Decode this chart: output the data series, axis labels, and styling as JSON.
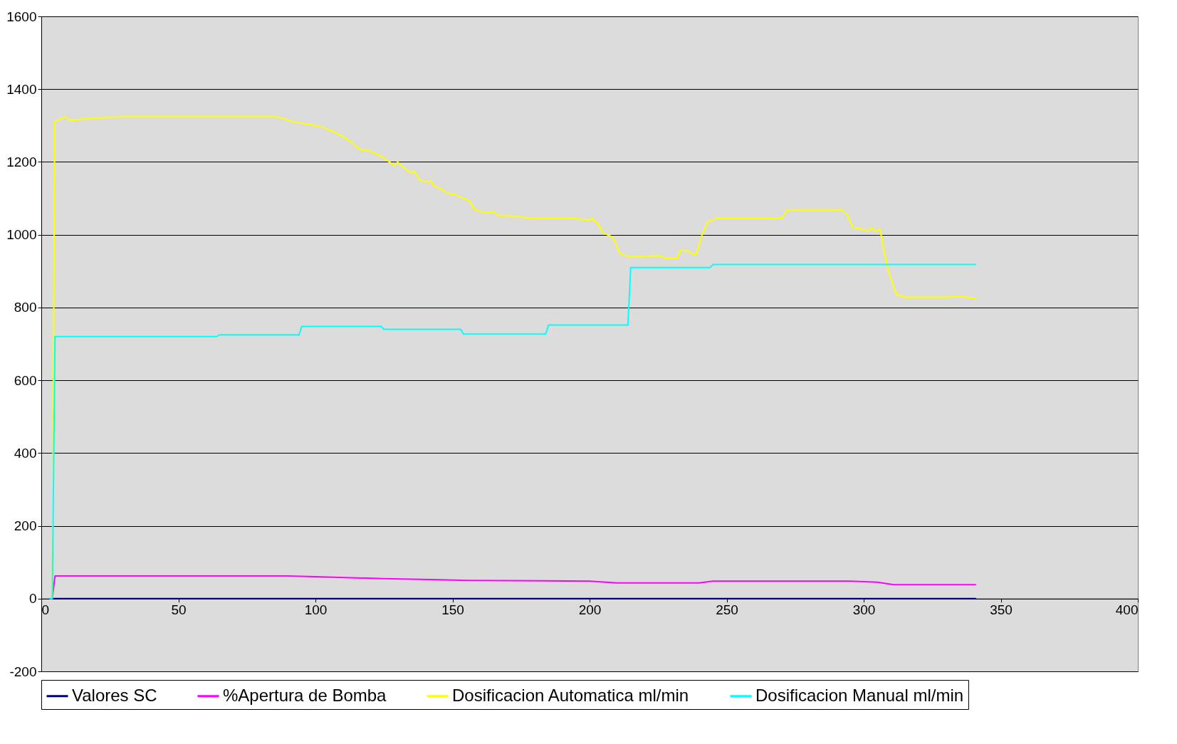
{
  "chart_data": {
    "type": "line",
    "xlim": [
      0,
      400
    ],
    "xticks": [
      0,
      50,
      100,
      150,
      200,
      250,
      300,
      350,
      400
    ],
    "ylim": [
      -200,
      1600
    ],
    "yticks": [
      -200,
      0,
      200,
      400,
      600,
      800,
      1000,
      1200,
      1400,
      1600
    ],
    "grid": "y",
    "legend": "bottom",
    "marker": "none",
    "line_style": "solid",
    "series": [
      {
        "name": "Valores SC",
        "color": "#000080",
        "x": [
          4,
          341
        ],
        "values": [
          0,
          0
        ]
      },
      {
        "name": "%Apertura de Bomba",
        "color": "#ff00ff",
        "x": [
          4,
          5,
          90,
          100,
          125,
          145,
          155,
          200,
          210,
          240,
          245,
          295,
          305,
          311,
          341
        ],
        "values": [
          0,
          62,
          62,
          60,
          55,
          52,
          50,
          48,
          43,
          43,
          48,
          48,
          45,
          38,
          38
        ]
      },
      {
        "name": "Dosificacion Automatica ml/min",
        "color": "#ffff00",
        "x": [
          4,
          4.9,
          6,
          9,
          10,
          20,
          30,
          85,
          88,
          92,
          100,
          103,
          106,
          110,
          113,
          116,
          120,
          123,
          126,
          129,
          130,
          133,
          135,
          136,
          138,
          141,
          142,
          143,
          146,
          148,
          151,
          154,
          156,
          158,
          161,
          164,
          165,
          166,
          172,
          180,
          195,
          200,
          201,
          203,
          205,
          208,
          209,
          211,
          214,
          220,
          225,
          228,
          232,
          233,
          236,
          238,
          239,
          241,
          243,
          246,
          270,
          272,
          292,
          294,
          296,
          298,
          302,
          303,
          304,
          306,
          307,
          309,
          312,
          315,
          330,
          335,
          341
        ],
        "values": [
          0,
          1310,
          1315,
          1325,
          1315,
          1320,
          1325,
          1325,
          1320,
          1310,
          1300,
          1295,
          1285,
          1270,
          1255,
          1235,
          1230,
          1220,
          1205,
          1190,
          1200,
          1180,
          1170,
          1175,
          1150,
          1145,
          1150,
          1135,
          1125,
          1115,
          1110,
          1100,
          1095,
          1070,
          1062,
          1060,
          1065,
          1055,
          1050,
          1045,
          1045,
          1040,
          1045,
          1030,
          1005,
          995,
          985,
          950,
          940,
          940,
          942,
          935,
          935,
          958,
          955,
          945,
          948,
          1000,
          1035,
          1045,
          1045,
          1068,
          1068,
          1055,
          1020,
          1018,
          1010,
          1020,
          1010,
          1015,
          970,
          900,
          835,
          828,
          828,
          830,
          825
        ]
      },
      {
        "name": "Dosificacion Manual ml/min",
        "color": "#00ffff",
        "x": [
          3,
          4,
          5,
          64,
          65,
          94,
          95,
          124,
          125,
          153,
          154,
          184,
          185,
          214,
          215,
          244,
          245,
          341
        ],
        "values": [
          0,
          0,
          720,
          720,
          725,
          725,
          748,
          748,
          740,
          740,
          727,
          727,
          752,
          752,
          910,
          910,
          918,
          918
        ]
      }
    ]
  }
}
